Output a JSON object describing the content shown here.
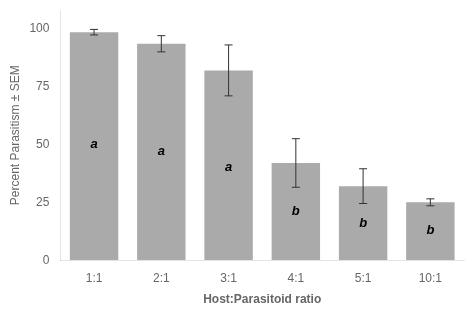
{
  "chart_data": {
    "type": "bar",
    "categories": [
      "1:1",
      "2:1",
      "3:1",
      "4:1",
      "5:1",
      "10:1"
    ],
    "values": [
      98.5,
      93.5,
      82.0,
      42.0,
      32.0,
      25.0
    ],
    "errors": [
      1.2,
      3.5,
      11.0,
      10.5,
      7.5,
      1.5
    ],
    "color": "#aaaaaa",
    "xlabel": "Host:Parasitoid ratio",
    "ylabel": "Percent Parasitism ± SEM",
    "ylim": [
      0,
      108
    ],
    "yticks": [
      0,
      25,
      50,
      75,
      100
    ],
    "grid": false,
    "annotations": [
      {
        "text": "a",
        "x": "1:1",
        "y": 50
      },
      {
        "text": "a",
        "x": "2:1",
        "y": 47
      },
      {
        "text": "a",
        "x": "3:1",
        "y": 40
      },
      {
        "text": "b",
        "x": "4:1",
        "y": 21
      },
      {
        "text": "b",
        "x": "5:1",
        "y": 16
      },
      {
        "text": "b",
        "x": "10:1",
        "y": 13
      }
    ]
  }
}
